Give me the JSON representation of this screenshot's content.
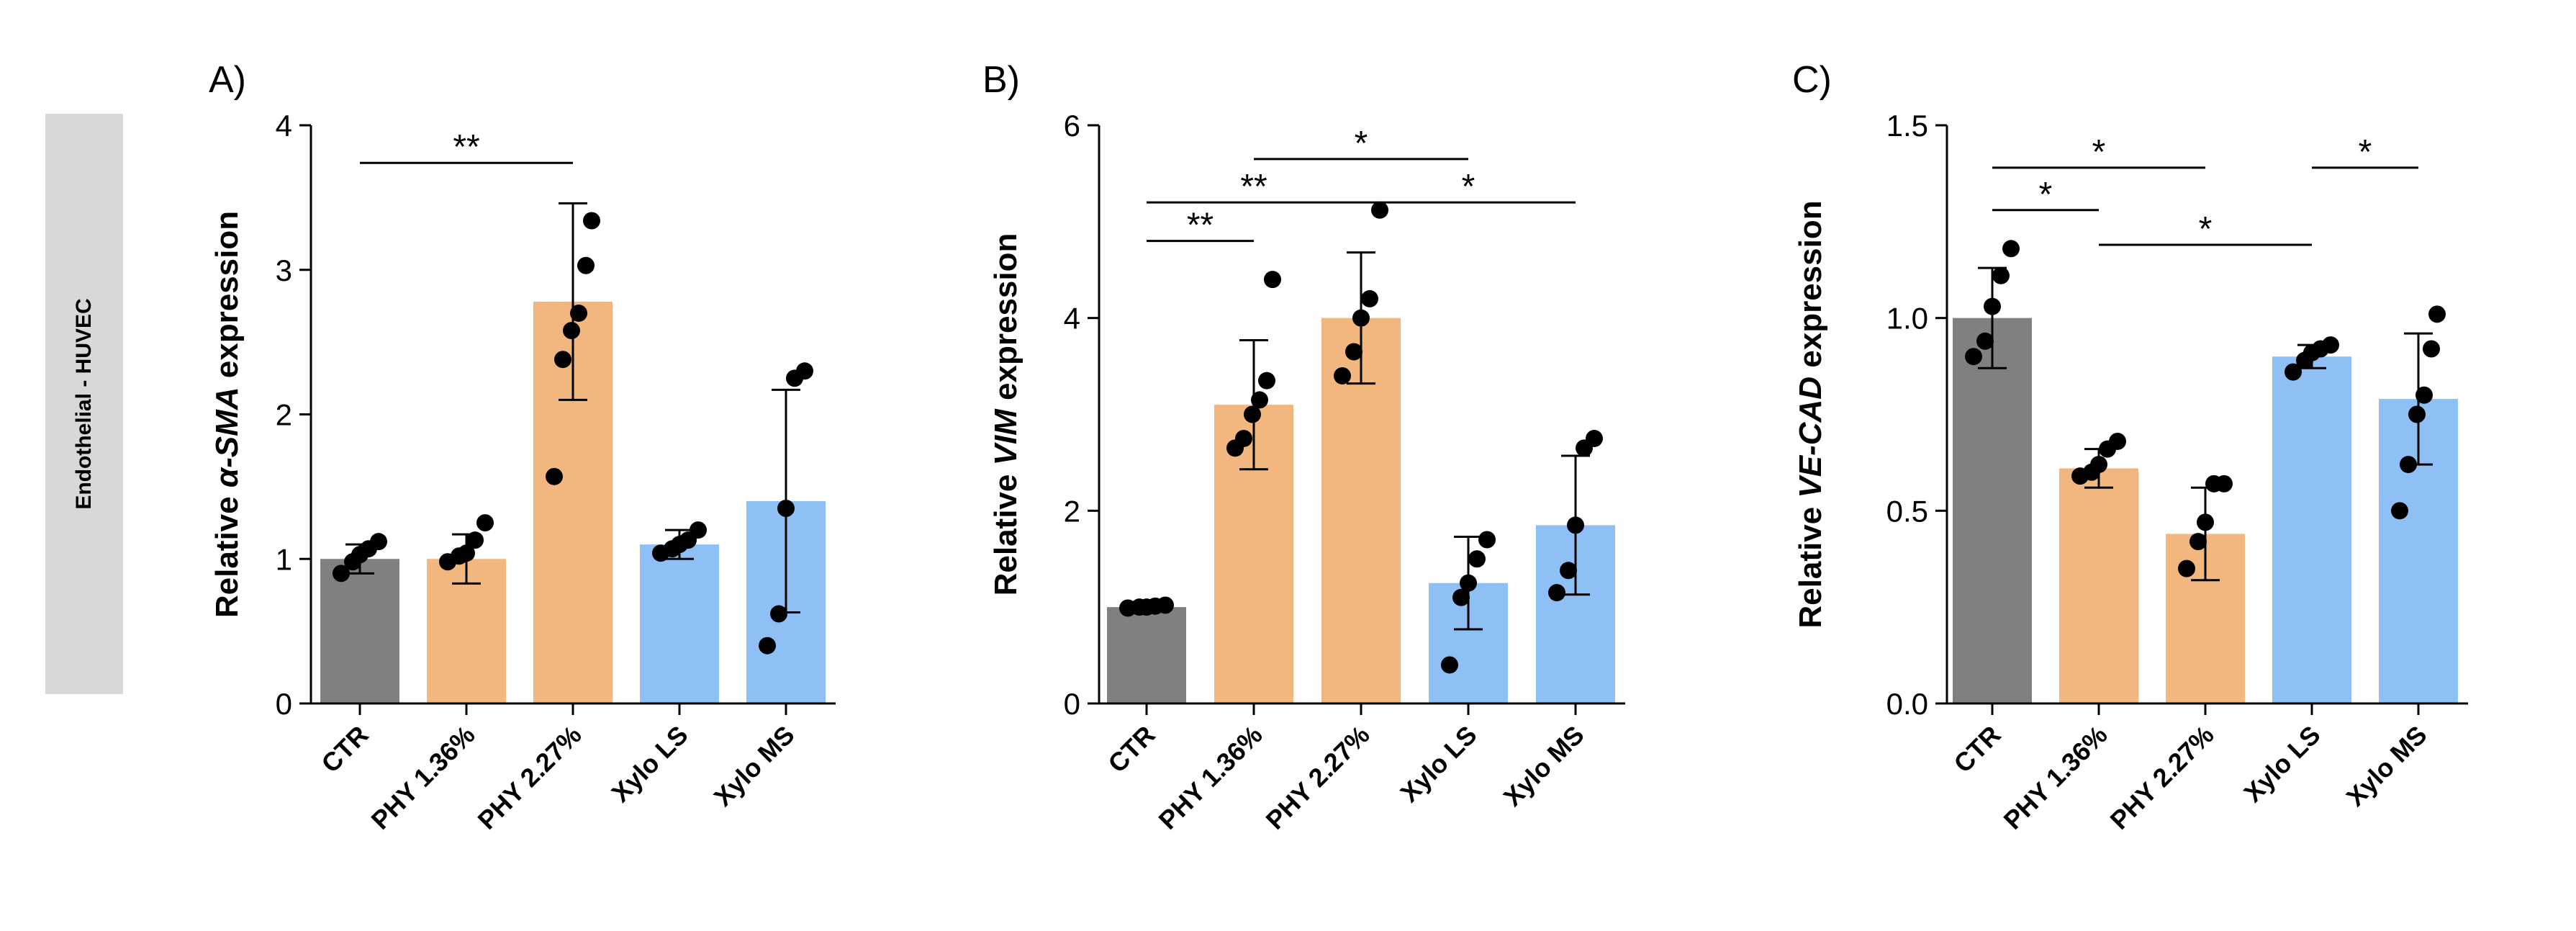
{
  "side_label": "Endothelial - HUVEC",
  "colors": {
    "CTR": "#808080",
    "PHY": "#f2b77e",
    "Xylo": "#8ec0f5",
    "ink": "#000000"
  },
  "chart_data": [
    {
      "type": "bar",
      "panel": "A)",
      "ylabel_pre": "Relative ",
      "ylabel_gene": "α-SMA",
      "ylabel_post": " expression",
      "categories": [
        "CTR",
        "PHY 1.36%",
        "PHY 2.27%",
        "Xylo LS",
        "Xylo MS"
      ],
      "values": [
        1.0,
        1.0,
        2.78,
        1.1,
        1.4
      ],
      "errors": [
        0.1,
        0.17,
        0.68,
        0.1,
        0.77
      ],
      "points": [
        [
          0.9,
          0.98,
          1.03,
          1.07,
          1.12
        ],
        [
          0.98,
          1.02,
          1.04,
          1.13,
          1.25
        ],
        [
          1.57,
          2.38,
          2.58,
          2.7,
          3.03,
          3.34
        ],
        [
          1.04,
          1.07,
          1.1,
          1.13,
          1.2
        ],
        [
          0.4,
          0.62,
          1.35,
          2.25,
          2.3
        ]
      ],
      "ylim": [
        0,
        4
      ],
      "yticks": [
        0,
        1,
        2,
        3,
        4
      ],
      "ytick_labels": [
        "0",
        "1",
        "2",
        "3",
        "4"
      ],
      "significance": [
        {
          "from": 0,
          "to": 2,
          "y": 3.74,
          "label": "**"
        }
      ]
    },
    {
      "type": "bar",
      "panel": "B)",
      "ylabel_pre": "Relative ",
      "ylabel_gene": "VIM",
      "ylabel_post": " expression",
      "categories": [
        "CTR",
        "PHY 1.36%",
        "PHY 2.27%",
        "Xylo LS",
        "Xylo MS"
      ],
      "values": [
        1.0,
        3.1,
        4.0,
        1.25,
        1.85
      ],
      "errors": [
        0.03,
        0.67,
        0.68,
        0.48,
        0.72
      ],
      "points": [
        [
          0.99,
          1.0,
          1.0,
          1.01,
          1.02
        ],
        [
          2.65,
          2.75,
          3.0,
          3.15,
          3.35,
          4.4
        ],
        [
          3.4,
          3.65,
          4.0,
          4.2,
          5.12
        ],
        [
          0.4,
          1.1,
          1.25,
          1.5,
          1.7
        ],
        [
          1.15,
          1.38,
          1.85,
          2.65,
          2.75
        ]
      ],
      "ylim": [
        0,
        6
      ],
      "yticks": [
        0,
        2,
        4,
        6
      ],
      "ytick_labels": [
        "0",
        "2",
        "4",
        "6"
      ],
      "significance": [
        {
          "from": 0,
          "to": 1,
          "y": 4.8,
          "label": "**"
        },
        {
          "from": 0,
          "to": 2,
          "y": 5.2,
          "label": "**"
        },
        {
          "from": 1,
          "to": 3,
          "y": 5.65,
          "label": "*"
        },
        {
          "from": 2,
          "to": 4,
          "y": 5.2,
          "label": "*"
        }
      ]
    },
    {
      "type": "bar",
      "panel": "C)",
      "ylabel_pre": "Relative ",
      "ylabel_gene": "VE-CAD",
      "ylabel_post": " expression",
      "categories": [
        "CTR",
        "PHY 1.36%",
        "PHY 2.27%",
        "Xylo LS",
        "Xylo MS"
      ],
      "values": [
        1.0,
        0.61,
        0.44,
        0.9,
        0.79
      ],
      "errors": [
        0.13,
        0.05,
        0.12,
        0.03,
        0.17
      ],
      "points": [
        [
          0.9,
          0.94,
          1.03,
          1.11,
          1.18
        ],
        [
          0.59,
          0.6,
          0.62,
          0.66,
          0.68
        ],
        [
          0.35,
          0.42,
          0.47,
          0.57,
          0.57
        ],
        [
          0.86,
          0.89,
          0.91,
          0.92,
          0.93
        ],
        [
          0.5,
          0.62,
          0.75,
          0.8,
          0.92,
          1.01
        ]
      ],
      "ylim": [
        0,
        1.5
      ],
      "yticks": [
        0,
        0.5,
        1.0,
        1.5
      ],
      "ytick_labels": [
        "0.0",
        "0.5",
        "1.0",
        "1.5"
      ],
      "significance": [
        {
          "from": 0,
          "to": 1,
          "y": 1.28,
          "label": "*"
        },
        {
          "from": 0,
          "to": 2,
          "y": 1.39,
          "label": "*"
        },
        {
          "from": 1,
          "to": 3,
          "y": 1.19,
          "label": "*"
        },
        {
          "from": 3,
          "to": 4,
          "y": 1.39,
          "label": "*"
        }
      ]
    }
  ]
}
